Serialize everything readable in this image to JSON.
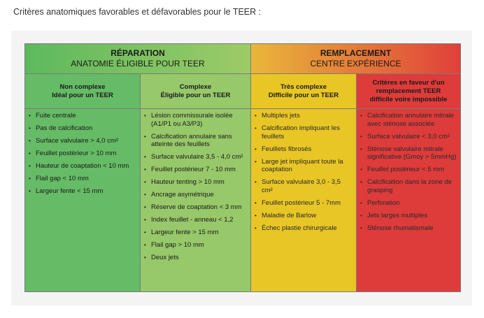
{
  "caption": "Critères anatomiques favorables et défavorables pour le TEER :",
  "groups": [
    {
      "title": "RÉPARATION",
      "subtitle": "ANATOMIE ÉLIGIBLE POUR TEER",
      "color": "#5cb85c"
    },
    {
      "title": "REMPLACEMENT",
      "subtitle": "CENTRE EXPÉRIENCE",
      "color": "#e89a3e"
    }
  ],
  "columns": [
    {
      "line1": "Non complexe",
      "line2": "Idéal pour un TEER",
      "color": "#66bb66",
      "items": [
        "Fuite centrale",
        "Pas de calcification",
        "Surface valvulaire > 4,0 cm²",
        "Feuillet postérieur > 10 mm",
        "Hauteur de coaptation < 10 mm",
        "Flail gap < 10 mm",
        "Largeur fente < 15 mm"
      ]
    },
    {
      "line1": "Complexe",
      "line2": "Éligible pour un TEER",
      "color": "#97c86a",
      "items": [
        "Lésion commissurale isolée (A1/P1 ou A3/P3)",
        "Calcification annulaire sans atteinte des feuillets",
        "Surface valvulaire 3,5 - 4,0 cm²",
        "Feuillet postérieur 7 - 10 mm",
        "Hauteur tenting > 10 mm",
        "Ancrage asymétrique",
        "Réserve de coaptation < 3 mm",
        "Index feuillet - anneau < 1,2",
        "Largeur fente > 15 mm",
        "Flail gap > 10 mm",
        "Deux jets"
      ]
    },
    {
      "line1": "Très complexe",
      "line2": "Difficile pour un TEER",
      "color": "#e8c626",
      "items": [
        "Multiples jets",
        "Calcification impliquant les feuillets",
        "Feuillets fibrosés",
        "Large jet impliquant toute la coaptation",
        "Surface valvulaire 3,0 - 3,5 cm²",
        "Feuillet postérieur 5 - 7mm",
        "Maladie de Barlow",
        "Échec plastie chirurgicale"
      ]
    },
    {
      "line1": "Critères en faveur d'un remplacement TEER",
      "line2": "difficile voire impossible",
      "color": "#de3b3b",
      "items": [
        "Calcification annulaire mitrale avec sténose associée",
        "Surface valvulaire < 3,0 cm²",
        "Sténose valvulaire mitrale significative (Gmoy > 5mmHg)",
        "Feuillet postérieur < 5 mm",
        "Calcification dans la zone de grasping",
        "Perforation",
        "Jets larges multiples",
        "Sténose rhumatismale"
      ]
    }
  ]
}
